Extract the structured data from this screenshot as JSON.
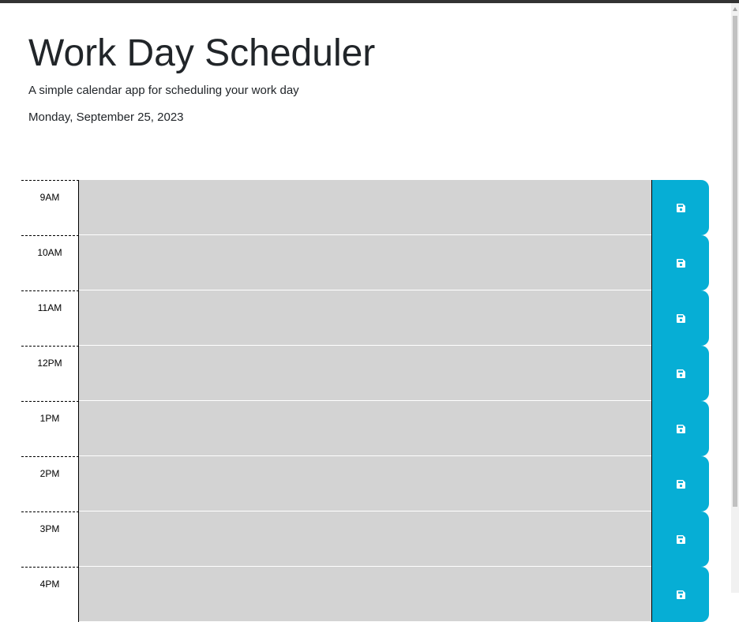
{
  "header": {
    "title": "Work Day Scheduler",
    "subtitle": "A simple calendar app for scheduling your work day",
    "current_day": "Monday, September 25, 2023"
  },
  "schedule": {
    "rows": [
      {
        "hour": "9AM",
        "description": ""
      },
      {
        "hour": "10AM",
        "description": ""
      },
      {
        "hour": "11AM",
        "description": ""
      },
      {
        "hour": "12PM",
        "description": ""
      },
      {
        "hour": "1PM",
        "description": ""
      },
      {
        "hour": "2PM",
        "description": ""
      },
      {
        "hour": "3PM",
        "description": ""
      },
      {
        "hour": "4PM",
        "description": ""
      }
    ],
    "save_icon": "save-icon"
  },
  "colors": {
    "past": "#d3d3d3",
    "save_button": "#06aed5"
  }
}
